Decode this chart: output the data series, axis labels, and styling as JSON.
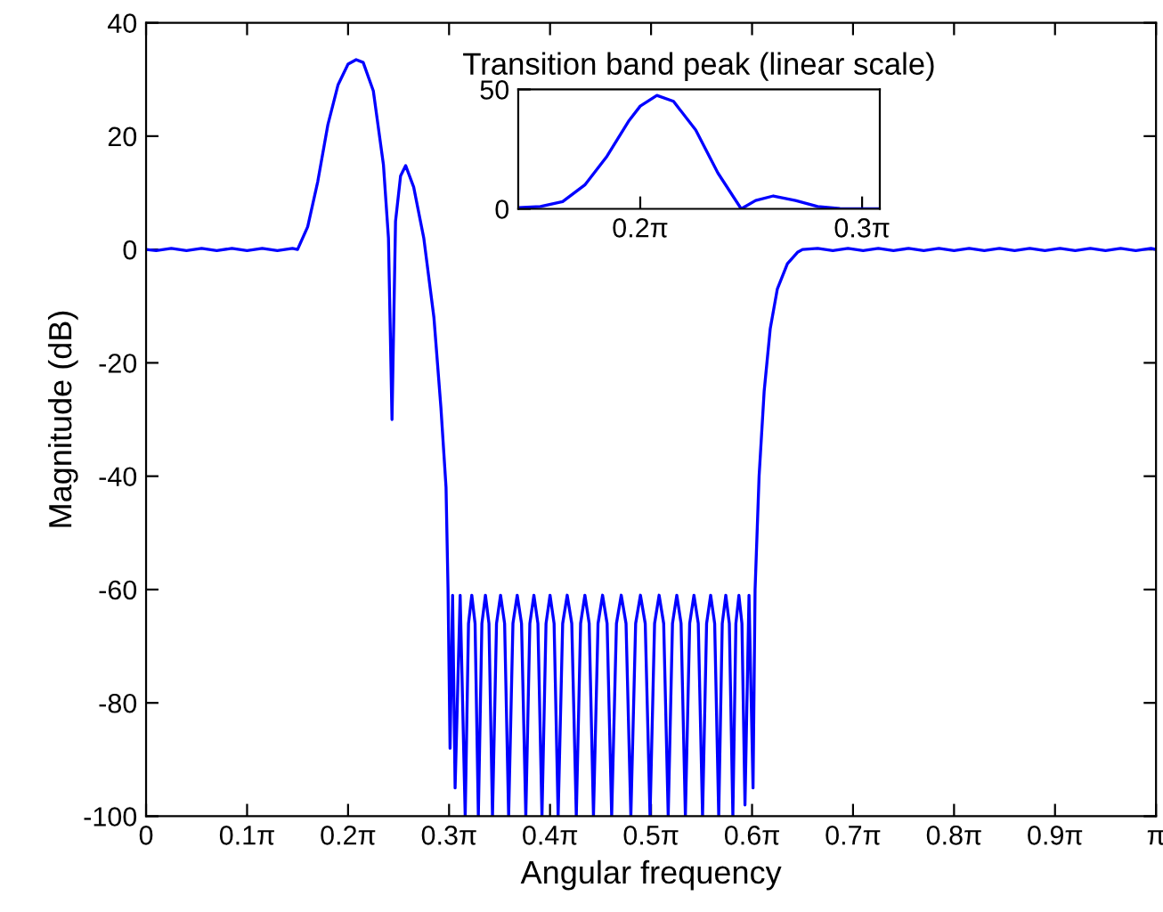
{
  "chart_data": [
    {
      "type": "line",
      "xlabel": "Angular frequency",
      "ylabel": "Magnitude (dB)",
      "xlim": [
        0,
        3.1416
      ],
      "ylim": [
        -100,
        40
      ],
      "xticks": [
        0,
        {
          "value": 0.3142,
          "label": "0.1π"
        },
        {
          "value": 0.6283,
          "label": "0.2π"
        },
        {
          "value": 0.9425,
          "label": "0.3π"
        },
        {
          "value": 1.2566,
          "label": "0.4π"
        },
        {
          "value": 1.5708,
          "label": "0.5π"
        },
        {
          "value": 1.885,
          "label": "0.6π"
        },
        {
          "value": 2.1991,
          "label": "0.7π"
        },
        {
          "value": 2.5133,
          "label": "0.8π"
        },
        {
          "value": 2.8274,
          "label": "0.9π"
        },
        {
          "value": 3.1416,
          "label": "π"
        }
      ],
      "yticks": [
        -100,
        -80,
        -60,
        -40,
        -20,
        0,
        20,
        40
      ],
      "series": [
        {
          "color": "#0000ff",
          "x": [
            0,
            0.0314,
            0.0785,
            0.1257,
            0.1728,
            0.2199,
            0.267,
            0.3142,
            0.3613,
            0.4084,
            0.4555,
            0.4712,
            0.5027,
            0.5341,
            0.5655,
            0.5969,
            0.6283,
            0.6535,
            0.6754,
            0.7069,
            0.7383,
            0.754,
            0.765,
            0.776,
            0.7917,
            0.8074,
            0.8325,
            0.8639,
            0.8954,
            0.9173,
            0.9331,
            0.9393,
            0.9456,
            0.9535,
            0.9613,
            0.977,
            0.9927,
            1.003,
            1.0132,
            1.0234,
            1.0336,
            1.0446,
            1.0556,
            1.0666,
            1.0776,
            1.0901,
            1.1027,
            1.1153,
            1.1278,
            1.1412,
            1.1545,
            1.1679,
            1.1812,
            1.1938,
            1.2064,
            1.2189,
            1.2315,
            1.2441,
            1.2566,
            1.2692,
            1.2818,
            1.2959,
            1.31,
            1.3242,
            1.3383,
            1.3517,
            1.365,
            1.3784,
            1.3917,
            1.4059,
            1.42,
            1.4341,
            1.4483,
            1.4632,
            1.4781,
            1.493,
            1.508,
            1.5229,
            1.5378,
            1.5527,
            1.5677,
            1.5818,
            1.5959,
            1.6101,
            1.6242,
            1.6375,
            1.6509,
            1.6642,
            1.6776,
            1.691,
            1.7043,
            1.7177,
            1.731,
            1.7436,
            1.7562,
            1.7687,
            1.7813,
            1.7923,
            1.8033,
            1.8143,
            1.8253,
            1.8347,
            1.8441,
            1.8535,
            1.863,
            1.8755,
            1.8881,
            1.8944,
            1.9069,
            1.9227,
            1.9415,
            1.9635,
            1.9949,
            2.0263,
            2.042,
            2.0892,
            2.1363,
            2.1834,
            2.2305,
            2.2777,
            2.3248,
            2.3719,
            2.419,
            2.4662,
            2.5133,
            2.5604,
            2.6075,
            2.6546,
            2.7018,
            2.7489,
            2.796,
            2.8431,
            2.8903,
            2.9374,
            2.9845,
            3.0316,
            3.0788,
            3.1259,
            3.1416
          ],
          "values": [
            0,
            -0.2,
            0.2,
            -0.2,
            0.2,
            -0.2,
            0.2,
            -0.2,
            0.2,
            -0.2,
            0.2,
            0,
            4,
            12,
            22,
            29,
            32.7,
            33.5,
            33,
            28,
            15,
            2,
            -30,
            5,
            13,
            14.8,
            11,
            2,
            -12,
            -28,
            -42,
            -60,
            -88,
            -61,
            -95,
            -61,
            -100,
            -66,
            -61,
            -66,
            -100,
            -66,
            -61,
            -66,
            -100,
            -66,
            -61,
            -66,
            -100,
            -66,
            -61,
            -66,
            -100,
            -66,
            -61,
            -66,
            -100,
            -66,
            -61,
            -66,
            -100,
            -66,
            -61,
            -66,
            -100,
            -66,
            -61,
            -66,
            -100,
            -66,
            -61,
            -66,
            -100,
            -66,
            -61,
            -66,
            -100,
            -66,
            -61,
            -66,
            -100,
            -66,
            -61,
            -66,
            -100,
            -66,
            -61,
            -66,
            -100,
            -66,
            -61,
            -66,
            -100,
            -66,
            -61,
            -66,
            -100,
            -66,
            -61,
            -66,
            -100,
            -66,
            -61,
            -66,
            -98,
            -61,
            -95,
            -60,
            -40,
            -25,
            -14,
            -7,
            -2.5,
            -0.5,
            0,
            0.2,
            -0.2,
            0.2,
            -0.2,
            0.2,
            -0.2,
            0.2,
            -0.2,
            0.2,
            -0.2,
            0.2,
            -0.2,
            0.2,
            -0.2,
            0.2,
            -0.2,
            0.2,
            -0.2,
            0.2,
            -0.2,
            0.2,
            -0.2,
            0.2,
            0
          ]
        }
      ]
    },
    {
      "type": "line",
      "title": "Transition band peak (linear scale)",
      "xlim": [
        0.4555,
        0.9676
      ],
      "ylim": [
        0,
        50
      ],
      "xticks": [
        {
          "value": 0.6283,
          "label": "0.2π"
        },
        {
          "value": 0.9425,
          "label": "0.3π"
        }
      ],
      "yticks": [
        0,
        50
      ],
      "series": [
        {
          "color": "#0000ff",
          "x": [
            0.4555,
            0.4869,
            0.5184,
            0.5498,
            0.5812,
            0.6126,
            0.6283,
            0.6519,
            0.6754,
            0.7069,
            0.7383,
            0.7713,
            0.7917,
            0.8168,
            0.8482,
            0.8796,
            0.9111,
            0.9676
          ],
          "values": [
            0.5,
            1,
            3,
            10,
            22,
            37,
            43,
            47.5,
            45,
            33,
            15,
            0,
            3.5,
            5.4,
            3.5,
            1,
            0.1,
            0
          ]
        }
      ]
    }
  ]
}
